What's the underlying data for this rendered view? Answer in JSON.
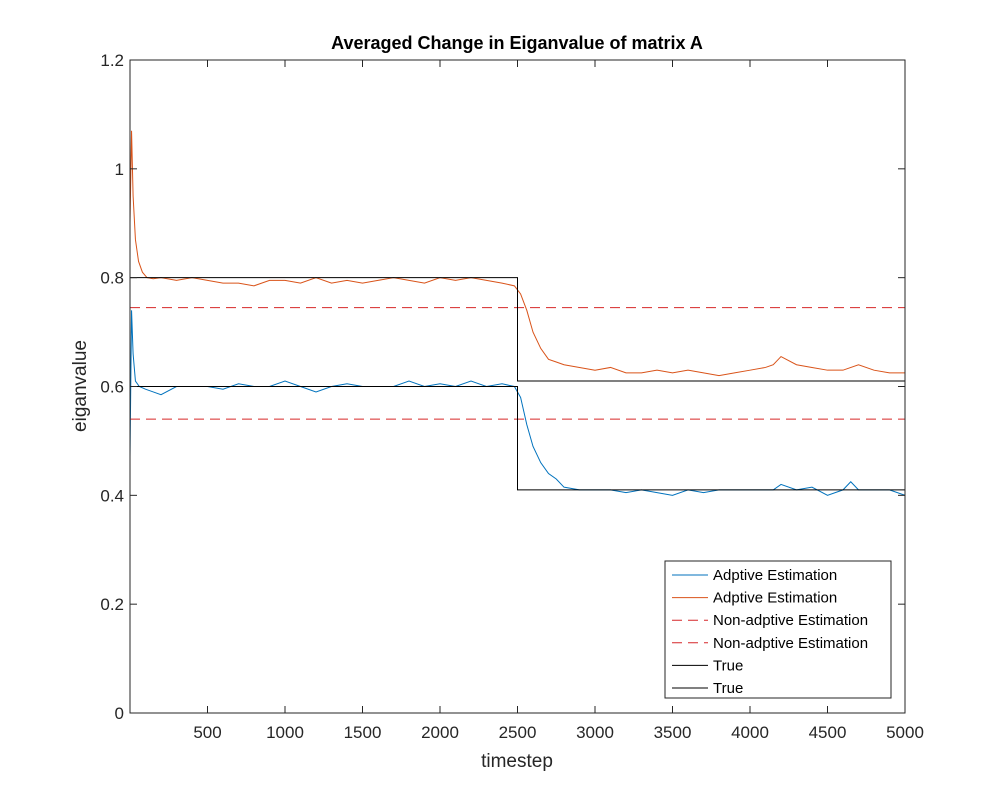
{
  "chart_data": {
    "type": "line",
    "title": "Averaged Change in Eiganvalue of matrix A",
    "xlabel": "timestep",
    "ylabel": "eiganvalue",
    "xlim": [
      0,
      5000
    ],
    "ylim": [
      0,
      1.2
    ],
    "xticks": [
      500,
      1000,
      1500,
      2000,
      2500,
      3000,
      3500,
      4000,
      4500,
      5000
    ],
    "yticks": [
      0,
      0.2,
      0.4,
      0.6,
      0.8,
      1,
      1.2
    ],
    "xtick_labels": [
      "500",
      "1000",
      "1500",
      "2000",
      "2500",
      "3000",
      "3500",
      "4000",
      "4500",
      "5000"
    ],
    "ytick_labels": [
      "0",
      "0.2",
      "0.4",
      "0.6",
      "0.8",
      "1",
      "1.2"
    ],
    "grid": false,
    "legend_position": "bottom-right",
    "series": [
      {
        "name": "Adptive Estimation",
        "color": "#0072BD",
        "style": "solid",
        "x": [
          0,
          10,
          20,
          35,
          60,
          100,
          150,
          200,
          300,
          400,
          500,
          600,
          700,
          800,
          900,
          1000,
          1100,
          1200,
          1300,
          1400,
          1500,
          1600,
          1700,
          1800,
          1900,
          2000,
          2100,
          2200,
          2300,
          2400,
          2480,
          2520,
          2560,
          2600,
          2650,
          2700,
          2750,
          2800,
          2900,
          3000,
          3100,
          3200,
          3300,
          3400,
          3500,
          3600,
          3700,
          3800,
          3900,
          4000,
          4100,
          4150,
          4200,
          4300,
          4400,
          4500,
          4600,
          4650,
          4700,
          4800,
          4900,
          5000
        ],
        "y": [
          0.47,
          0.74,
          0.66,
          0.61,
          0.6,
          0.595,
          0.59,
          0.585,
          0.6,
          0.6,
          0.6,
          0.595,
          0.605,
          0.6,
          0.6,
          0.61,
          0.6,
          0.59,
          0.6,
          0.605,
          0.6,
          0.6,
          0.6,
          0.61,
          0.6,
          0.605,
          0.6,
          0.61,
          0.6,
          0.605,
          0.6,
          0.58,
          0.53,
          0.49,
          0.46,
          0.44,
          0.43,
          0.415,
          0.41,
          0.41,
          0.41,
          0.405,
          0.41,
          0.405,
          0.4,
          0.41,
          0.405,
          0.41,
          0.41,
          0.41,
          0.41,
          0.41,
          0.42,
          0.41,
          0.415,
          0.4,
          0.41,
          0.425,
          0.41,
          0.41,
          0.41,
          0.4
        ]
      },
      {
        "name": "Adptive Estimation",
        "color": "#D95319",
        "style": "solid",
        "x": [
          0,
          10,
          20,
          35,
          55,
          80,
          110,
          150,
          200,
          300,
          400,
          500,
          600,
          700,
          800,
          900,
          1000,
          1100,
          1200,
          1300,
          1400,
          1500,
          1600,
          1700,
          1800,
          1900,
          2000,
          2100,
          2200,
          2300,
          2400,
          2480,
          2520,
          2560,
          2600,
          2650,
          2700,
          2750,
          2800,
          2900,
          3000,
          3100,
          3200,
          3300,
          3400,
          3500,
          3600,
          3700,
          3800,
          3900,
          4000,
          4100,
          4150,
          4200,
          4300,
          4400,
          4500,
          4600,
          4700,
          4800,
          4900,
          5000
        ],
        "y": [
          0.9,
          1.07,
          0.95,
          0.87,
          0.83,
          0.81,
          0.8,
          0.798,
          0.8,
          0.795,
          0.8,
          0.795,
          0.79,
          0.79,
          0.785,
          0.795,
          0.795,
          0.79,
          0.8,
          0.79,
          0.795,
          0.79,
          0.795,
          0.8,
          0.795,
          0.79,
          0.8,
          0.795,
          0.8,
          0.795,
          0.79,
          0.785,
          0.77,
          0.74,
          0.7,
          0.67,
          0.65,
          0.645,
          0.64,
          0.635,
          0.63,
          0.635,
          0.625,
          0.625,
          0.63,
          0.625,
          0.63,
          0.625,
          0.62,
          0.625,
          0.63,
          0.635,
          0.64,
          0.655,
          0.64,
          0.635,
          0.63,
          0.63,
          0.64,
          0.63,
          0.625,
          0.625
        ]
      },
      {
        "name": "Non-adptive Estimation",
        "color": "#D62728",
        "style": "dashed",
        "x": [
          0,
          5000
        ],
        "y": [
          0.745,
          0.745
        ]
      },
      {
        "name": "Non-adptive Estimation",
        "color": "#D62728",
        "style": "dashed",
        "x": [
          0,
          5000
        ],
        "y": [
          0.54,
          0.54
        ]
      },
      {
        "name": "True",
        "color": "#000000",
        "style": "solid",
        "x": [
          0,
          2500,
          2500,
          5000
        ],
        "y": [
          0.6,
          0.6,
          0.41,
          0.41
        ]
      },
      {
        "name": "True",
        "color": "#000000",
        "style": "solid",
        "x": [
          0,
          2500,
          2500,
          5000
        ],
        "y": [
          0.8,
          0.8,
          0.61,
          0.61
        ]
      }
    ]
  }
}
